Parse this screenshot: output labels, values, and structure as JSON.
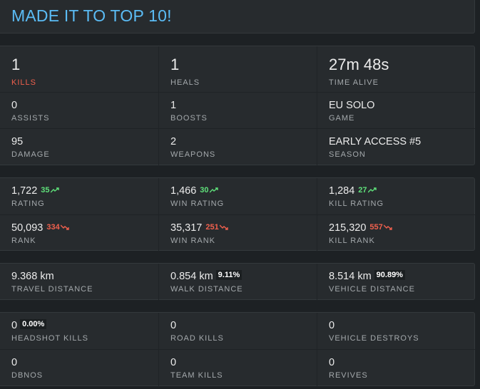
{
  "header": {
    "title": "MADE IT TO TOP 10!"
  },
  "colors": {
    "accent": "#5bbcf5",
    "up": "#5fe07a",
    "down": "#f0604d",
    "kills_label": "#f0604d"
  },
  "summary": [
    [
      {
        "value": "1",
        "label": "KILLS"
      },
      {
        "value": "1",
        "label": "HEALS"
      },
      {
        "value": "27m 48s",
        "label": "TIME ALIVE"
      }
    ],
    [
      {
        "value": "0",
        "label": "ASSISTS"
      },
      {
        "value": "1",
        "label": "BOOSTS"
      },
      {
        "value": "EU SOLO",
        "label": "GAME"
      }
    ],
    [
      {
        "value": "95",
        "label": "DAMAGE"
      },
      {
        "value": "2",
        "label": "WEAPONS"
      },
      {
        "value": "EARLY ACCESS #5",
        "label": "SEASON"
      }
    ]
  ],
  "ratings": [
    [
      {
        "value": "1,722",
        "delta": "35",
        "label": "RATING"
      },
      {
        "value": "1,466",
        "delta": "30",
        "label": "WIN RATING"
      },
      {
        "value": "1,284",
        "delta": "27",
        "label": "KILL RATING"
      }
    ],
    [
      {
        "value": "50,093",
        "delta": "334",
        "label": "RANK"
      },
      {
        "value": "35,317",
        "delta": "251",
        "label": "WIN RANK"
      },
      {
        "value": "215,320",
        "delta": "557",
        "label": "KILL RANK"
      }
    ]
  ],
  "distance": [
    {
      "value": "9.368 km",
      "pct": "",
      "label": "TRAVEL DISTANCE"
    },
    {
      "value": "0.854 km",
      "pct": "9.11%",
      "label": "WALK DISTANCE"
    },
    {
      "value": "8.514 km",
      "pct": "90.89%",
      "label": "VEHICLE DISTANCE"
    }
  ],
  "misc": [
    [
      {
        "value": "0",
        "pct": "0.00%",
        "label": "HEADSHOT KILLS"
      },
      {
        "value": "0",
        "label": "ROAD KILLS"
      },
      {
        "value": "0",
        "label": "VEHICLE DESTROYS"
      }
    ],
    [
      {
        "value": "0",
        "label": "DBNOS"
      },
      {
        "value": "0",
        "label": "TEAM KILLS"
      },
      {
        "value": "0",
        "label": "REVIVES"
      }
    ]
  ]
}
